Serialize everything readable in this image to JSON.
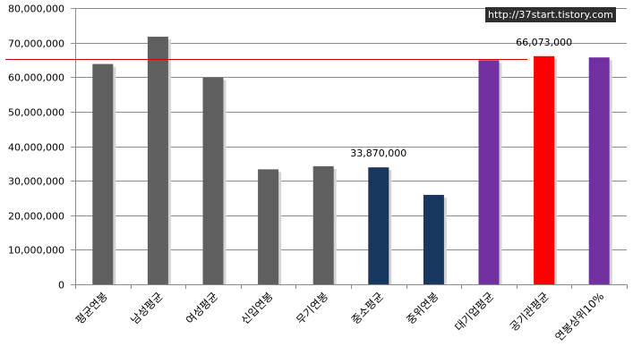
{
  "watermark": "http://37start.tistory.com",
  "chart_data": {
    "type": "bar",
    "categories": [
      "평균연봉",
      "남성평균",
      "여성평균",
      "신입연봉",
      "무기연봉",
      "중소평균",
      "중위연봉",
      "대기업평균",
      "공기관평균",
      "연봉상위10%"
    ],
    "values": [
      63800000,
      71700000,
      59900000,
      33300000,
      34200000,
      33870000,
      25900000,
      64900000,
      66073000,
      65700000
    ],
    "bar_colors": [
      "#5f5f5f",
      "#5f5f5f",
      "#5f5f5f",
      "#5f5f5f",
      "#5f5f5f",
      "#17375e",
      "#17375e",
      "#7030a0",
      "#ff0000",
      "#7030a0"
    ],
    "data_labels": [
      {
        "category": "중소평균",
        "text": "33,870,000"
      },
      {
        "category": "공기관평균",
        "text": "66,073,000"
      }
    ],
    "yticks": [
      "0",
      "10,000,000",
      "20,000,000",
      "30,000,000",
      "40,000,000",
      "50,000,000",
      "60,000,000",
      "70,000,000",
      "80,000,000"
    ],
    "ylim": [
      0,
      80000000
    ],
    "reference_line": {
      "value": 65300000,
      "color": "#cc0000"
    },
    "grid": true,
    "legend": "none"
  }
}
